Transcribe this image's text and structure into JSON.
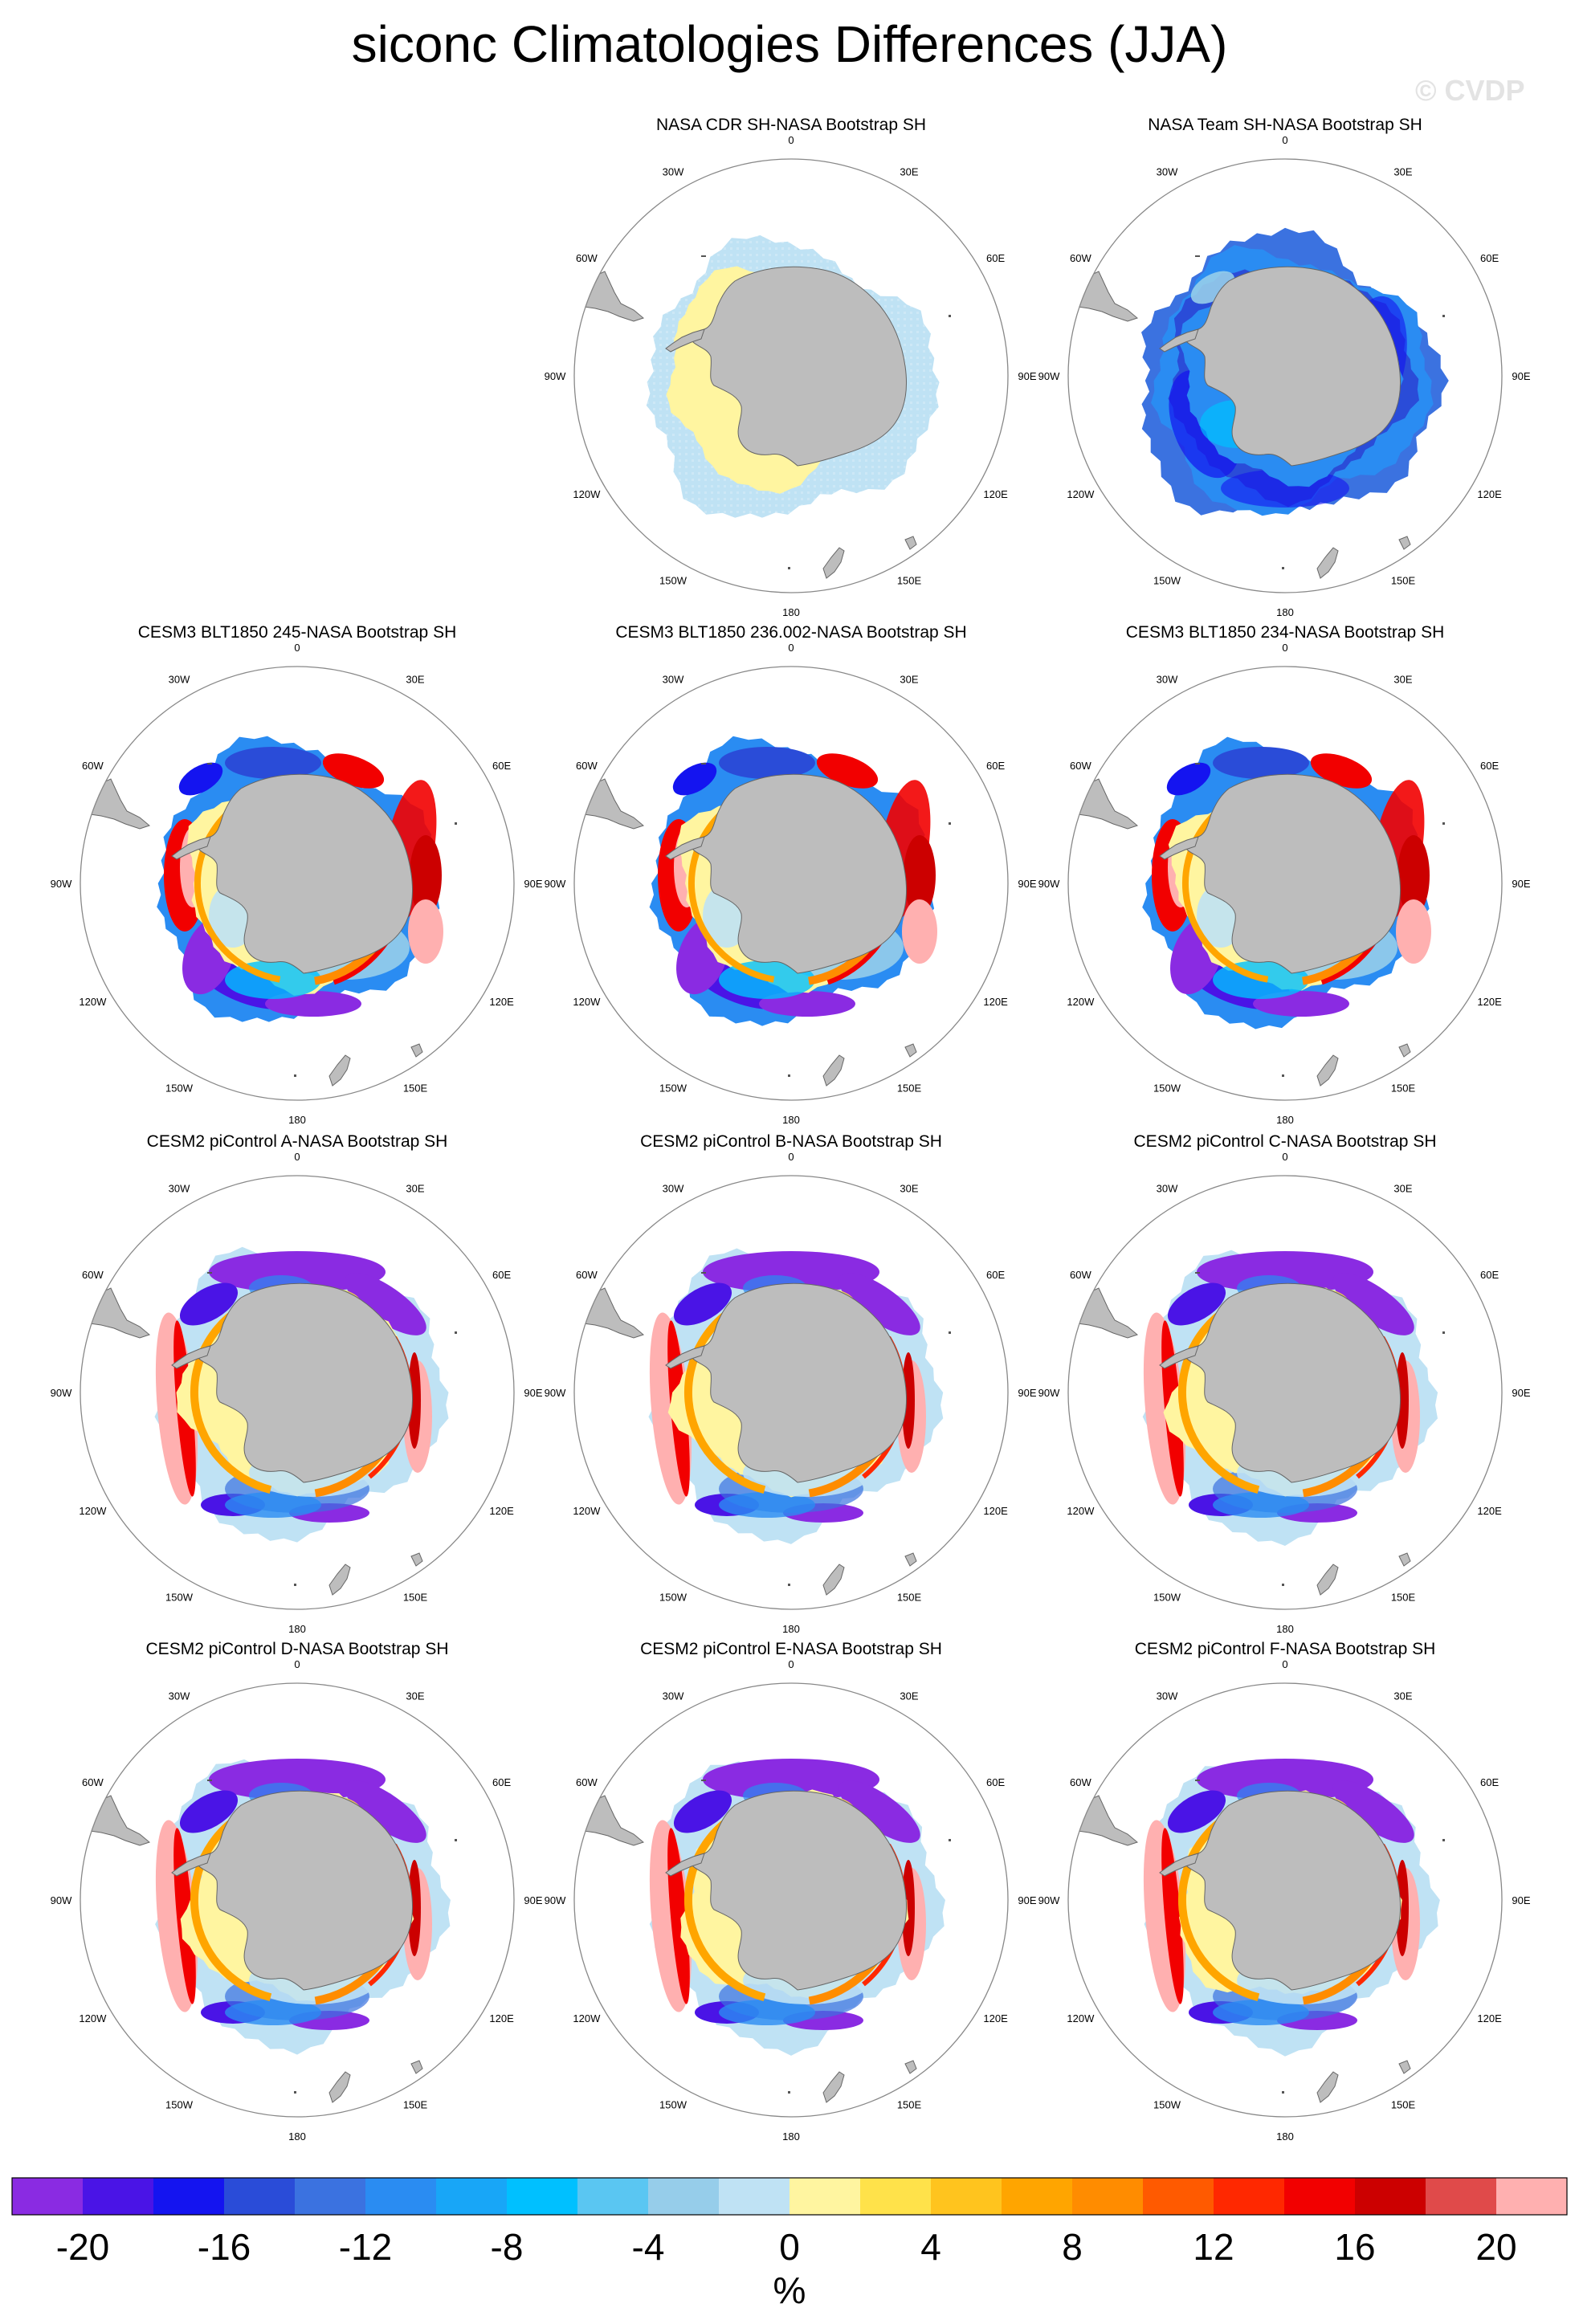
{
  "title": "siconc Climatologies Differences (JJA)",
  "watermark": "© CVDP",
  "colors": {
    "land": "#bdbdbd",
    "land_edge": "#666666",
    "circle": "#888888"
  },
  "lon_labels": {
    "0": "0",
    "30E": "30E",
    "60E": "60E",
    "90E": "90E",
    "120E": "120E",
    "150E": "150E",
    "180": "180",
    "150W": "150W",
    "120W": "120W",
    "90W": "90W",
    "60W": "60W",
    "30W": "30W"
  },
  "panels": [
    {
      "title": "NASA CDR SH-NASA Bootstrap SH",
      "style": "cdr"
    },
    {
      "title": "NASA Team SH-NASA Bootstrap SH",
      "style": "team"
    },
    {
      "title": "CESM3 BLT1850 245-NASA Bootstrap SH",
      "style": "cesm3"
    },
    {
      "title": "CESM3 BLT1850 236.002-NASA Bootstrap SH",
      "style": "cesm3"
    },
    {
      "title": "CESM3 BLT1850 234-NASA Bootstrap SH",
      "style": "cesm3"
    },
    {
      "title": "CESM2 piControl A-NASA Bootstrap SH",
      "style": "cesm2"
    },
    {
      "title": "CESM2 piControl B-NASA Bootstrap SH",
      "style": "cesm2"
    },
    {
      "title": "CESM2 piControl C-NASA Bootstrap SH",
      "style": "cesm2"
    },
    {
      "title": "CESM2 piControl D-NASA Bootstrap SH",
      "style": "cesm2"
    },
    {
      "title": "CESM2 piControl E-NASA Bootstrap SH",
      "style": "cesm2"
    },
    {
      "title": "CESM2 piControl F-NASA Bootstrap SH",
      "style": "cesm2"
    }
  ],
  "colorbar": {
    "unit": "%",
    "labels": [
      "-20",
      "-16",
      "-12",
      "-8",
      "-4",
      "0",
      "4",
      "8",
      "12",
      "16",
      "20"
    ],
    "colors": [
      "#8a2be2",
      "#4a14e6",
      "#1414f0",
      "#2a4cd8",
      "#3b72e0",
      "#2a8cf2",
      "#18a6f7",
      "#00c0ff",
      "#5ac6f2",
      "#96cdea",
      "#bfe2f4",
      "#fff5a0",
      "#ffe24a",
      "#ffc41e",
      "#ffa500",
      "#ff8c00",
      "#ff5a00",
      "#ff2800",
      "#f20000",
      "#cc0000",
      "#e04a4a",
      "#ffb0b0"
    ]
  }
}
